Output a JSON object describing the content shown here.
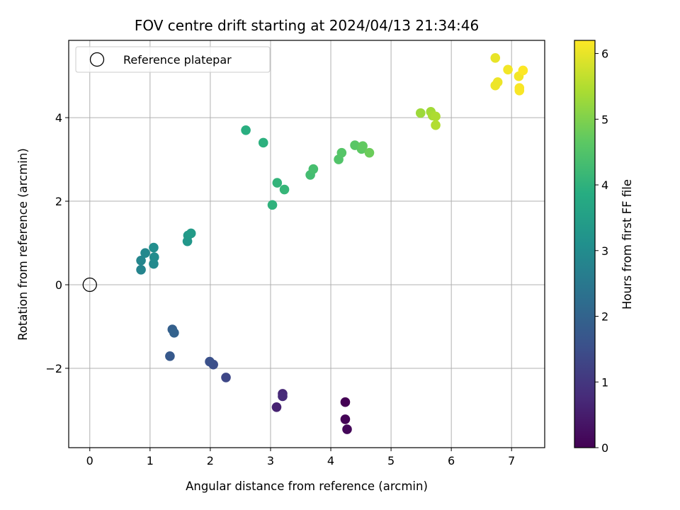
{
  "chart_data": {
    "type": "scatter",
    "title": "FOV centre drift starting at 2024/04/13 21:34:46",
    "xlabel": "Angular distance from reference (arcmin)",
    "ylabel": "Rotation from reference (arcmin)",
    "xlim": [
      -0.35,
      7.55
    ],
    "ylim": [
      -3.9,
      5.85
    ],
    "x_ticks": [
      0,
      1,
      2,
      3,
      4,
      5,
      6,
      7
    ],
    "y_ticks": [
      -2,
      0,
      2,
      4
    ],
    "grid": true,
    "legend": {
      "location": "top-left",
      "entries": [
        "Reference platepar"
      ]
    },
    "reference_point": {
      "x": 0,
      "y": 0,
      "marker": "hollow-circle",
      "label": "Reference platepar"
    },
    "colorbar": {
      "label": "Hours from first FF file",
      "colormap": "viridis",
      "range": [
        0,
        6.2
      ],
      "ticks": [
        0,
        1,
        2,
        3,
        4,
        5,
        6
      ]
    },
    "points": [
      {
        "x": 4.24,
        "y": -2.81,
        "c": 0.0
      },
      {
        "x": 4.24,
        "y": -3.22,
        "c": 0.05
      },
      {
        "x": 4.27,
        "y": -3.46,
        "c": 0.1
      },
      {
        "x": 3.1,
        "y": -2.93,
        "c": 0.6
      },
      {
        "x": 3.2,
        "y": -2.61,
        "c": 0.7
      },
      {
        "x": 3.2,
        "y": -2.67,
        "c": 0.75
      },
      {
        "x": 2.26,
        "y": -2.22,
        "c": 1.35
      },
      {
        "x": 2.05,
        "y": -1.91,
        "c": 1.5
      },
      {
        "x": 1.99,
        "y": -1.84,
        "c": 1.55
      },
      {
        "x": 1.33,
        "y": -1.71,
        "c": 1.75
      },
      {
        "x": 1.37,
        "y": -1.07,
        "c": 1.9
      },
      {
        "x": 1.4,
        "y": -1.15,
        "c": 1.95
      },
      {
        "x": 0.85,
        "y": 0.36,
        "c": 2.8
      },
      {
        "x": 0.85,
        "y": 0.58,
        "c": 2.85
      },
      {
        "x": 0.92,
        "y": 0.76,
        "c": 2.9
      },
      {
        "x": 1.06,
        "y": 0.5,
        "c": 2.95
      },
      {
        "x": 1.07,
        "y": 0.66,
        "c": 3.0
      },
      {
        "x": 1.06,
        "y": 0.89,
        "c": 3.05
      },
      {
        "x": 1.62,
        "y": 1.04,
        "c": 3.3
      },
      {
        "x": 1.63,
        "y": 1.18,
        "c": 3.35
      },
      {
        "x": 1.68,
        "y": 1.23,
        "c": 3.4
      },
      {
        "x": 2.59,
        "y": 3.7,
        "c": 3.9
      },
      {
        "x": 2.88,
        "y": 3.4,
        "c": 3.95
      },
      {
        "x": 3.03,
        "y": 1.91,
        "c": 4.0
      },
      {
        "x": 3.11,
        "y": 2.44,
        "c": 4.05
      },
      {
        "x": 3.23,
        "y": 2.28,
        "c": 4.1
      },
      {
        "x": 3.66,
        "y": 2.63,
        "c": 4.3
      },
      {
        "x": 3.71,
        "y": 2.77,
        "c": 4.35
      },
      {
        "x": 4.13,
        "y": 3.0,
        "c": 4.5
      },
      {
        "x": 4.18,
        "y": 3.16,
        "c": 4.55
      },
      {
        "x": 4.4,
        "y": 3.34,
        "c": 4.6
      },
      {
        "x": 4.51,
        "y": 3.25,
        "c": 4.65
      },
      {
        "x": 4.53,
        "y": 3.32,
        "c": 4.7
      },
      {
        "x": 4.64,
        "y": 3.16,
        "c": 4.8
      },
      {
        "x": 5.49,
        "y": 4.11,
        "c": 5.3
      },
      {
        "x": 5.66,
        "y": 4.14,
        "c": 5.35
      },
      {
        "x": 5.69,
        "y": 4.05,
        "c": 5.4
      },
      {
        "x": 5.74,
        "y": 4.03,
        "c": 5.45
      },
      {
        "x": 5.74,
        "y": 3.82,
        "c": 5.5
      },
      {
        "x": 6.73,
        "y": 5.43,
        "c": 6.0
      },
      {
        "x": 6.73,
        "y": 4.77,
        "c": 6.05
      },
      {
        "x": 6.77,
        "y": 4.85,
        "c": 6.05
      },
      {
        "x": 6.94,
        "y": 5.15,
        "c": 6.1
      },
      {
        "x": 7.12,
        "y": 4.99,
        "c": 6.1
      },
      {
        "x": 7.13,
        "y": 4.65,
        "c": 6.15
      },
      {
        "x": 7.13,
        "y": 4.71,
        "c": 6.15
      },
      {
        "x": 7.19,
        "y": 5.13,
        "c": 6.2
      }
    ]
  }
}
